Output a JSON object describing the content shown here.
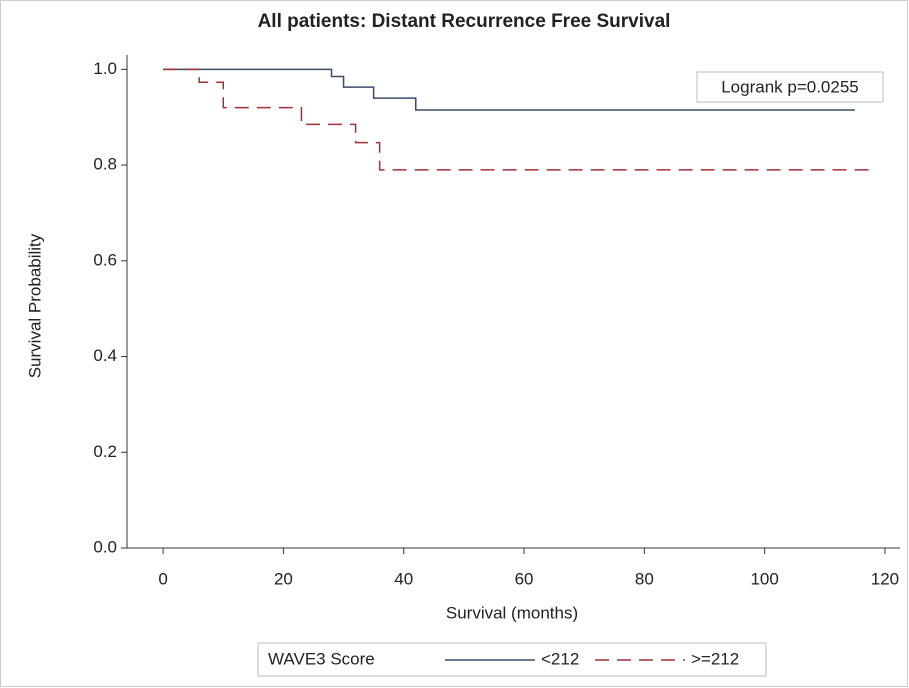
{
  "chart_data": {
    "type": "line",
    "step": "post",
    "title": "All patients: Distant Recurrence Free Survival",
    "xlabel": "Survival (months)",
    "ylabel": "Survival Probability",
    "annotation": "Logrank p=0.0255",
    "legend_title": "WAVE3 Score",
    "legend": "bottom",
    "xlim": [
      -6,
      122.5
    ],
    "xticks": [
      0,
      20,
      40,
      60,
      80,
      100,
      120
    ],
    "ylim": [
      0,
      1.03
    ],
    "yticks": [
      {
        "value": 0,
        "label": "0.0"
      },
      0.2,
      0.4,
      0.6,
      0.8,
      {
        "value": 1,
        "label": "1.0"
      }
    ],
    "series": [
      {
        "name": "<212",
        "color": "#3b4a6b",
        "dash": "solid",
        "x": [
          0,
          28,
          30,
          35,
          42,
          115
        ],
        "values": [
          1.0,
          0.985,
          0.963,
          0.94,
          0.915,
          0.915
        ]
      },
      {
        "name": ">=212",
        "color": "#a0303a",
        "dash": "dashed",
        "x": [
          0,
          6,
          10,
          23,
          32,
          36,
          118
        ],
        "values": [
          1.0,
          0.973,
          0.92,
          0.885,
          0.847,
          0.79,
          0.79
        ]
      }
    ]
  }
}
